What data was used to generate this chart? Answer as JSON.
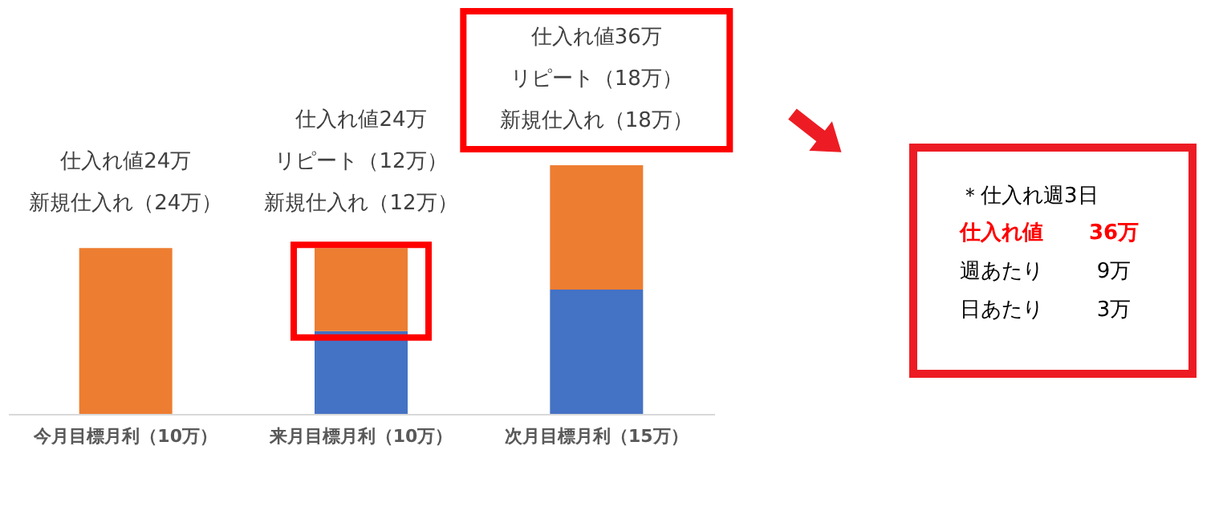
{
  "chart_data": [
    {
      "type": "bar",
      "categories": [
        "今月目標月利（10万）",
        "来月目標月利（10万）",
        "次月目標月利（15万）"
      ],
      "stacked": true,
      "tick_labels": "x",
      "grid": false,
      "series": [
        {
          "color": "#4472c4",
          "values": [
            0,
            12,
            18
          ]
        },
        {
          "color": "#ed7d31",
          "values": [
            24,
            12,
            18
          ],
          "value_labels": [
            "新規仕入れ（24万）",
            "新規仕入れ（12万）",
            "新規仕入れ（18万）"
          ]
        }
      ],
      "annotations": [
        "仕入れ値24万",
        "仕入れ値24万",
        "リピート（12万）",
        "仕入れ値36万",
        "リピート（18万）"
      ]
    },
    {
      "type": "other",
      "annotations": [
        "＊仕入れ週3日",
        "仕入れ値",
        "36万",
        "週あたり",
        "9万",
        "日あたり",
        "3万"
      ]
    }
  ]
}
